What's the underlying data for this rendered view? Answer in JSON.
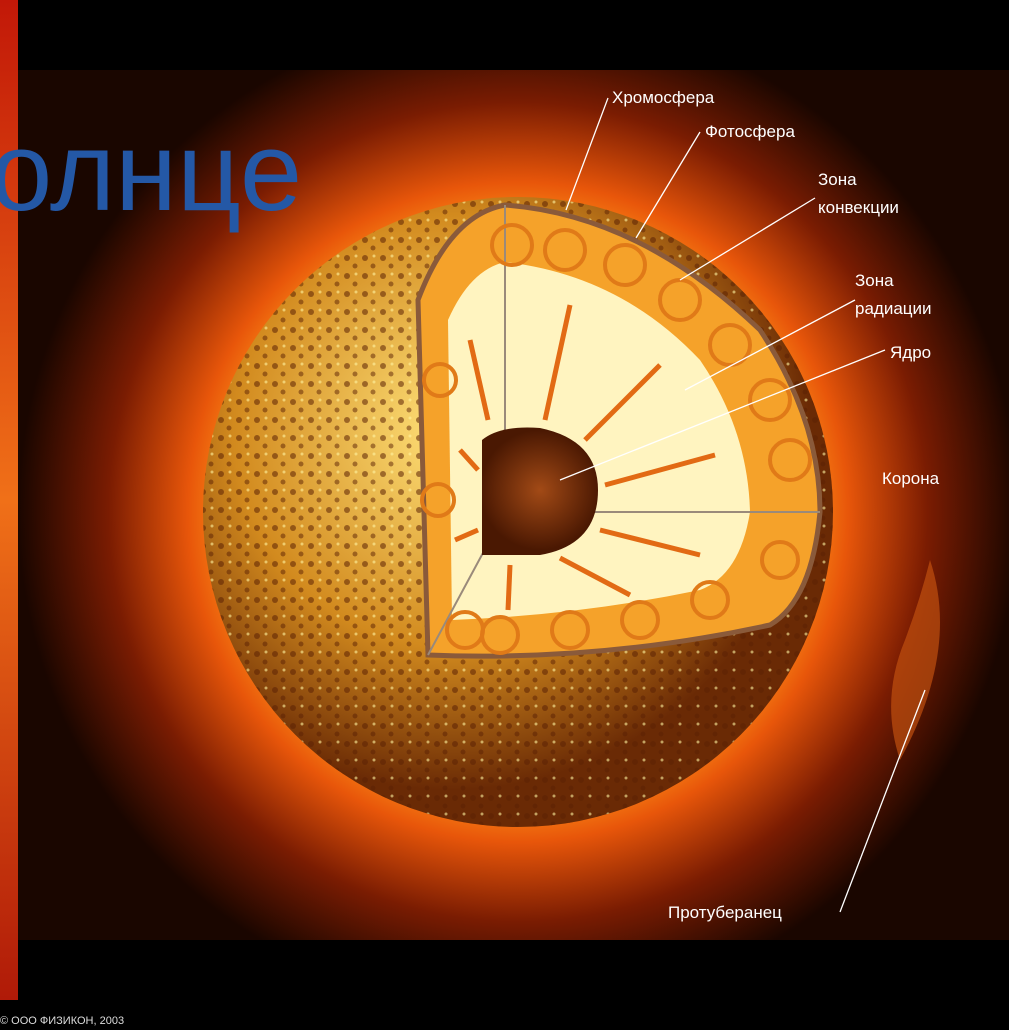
{
  "title": "олнце",
  "labels": {
    "chromosphere": "Хромосфера",
    "photosphere": "Фотосфера",
    "convection_zone": [
      "Зона",
      "конвекции"
    ],
    "radiation_zone": [
      "Зона",
      "радиации"
    ],
    "core": "Ядро",
    "corona": "Корона",
    "prominence": "Протуберанец"
  },
  "copyright": "© ООО ФИЗИКОН, 2003"
}
